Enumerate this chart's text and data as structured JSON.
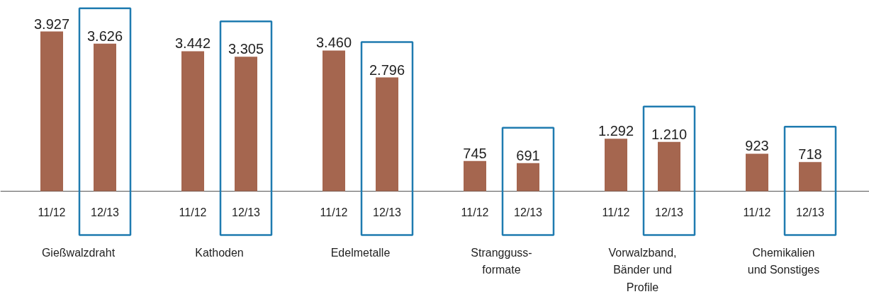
{
  "chart_data": {
    "type": "bar",
    "categories": [
      "Gießwalzdraht",
      "Kathoden",
      "Edelmetalle",
      "Strangguss-\nformate",
      "Vorwalzband,\nBänder und\nProfile",
      "Chemikalien\nund Sonstiges"
    ],
    "series": [
      {
        "name": "11/12",
        "color": "#a5664f",
        "values": [
          3927,
          3442,
          3460,
          745,
          1292,
          923
        ],
        "value_labels": [
          "3.927",
          "3.442",
          "3.460",
          "745",
          "1.292",
          "923"
        ]
      },
      {
        "name": "12/13",
        "color": "#a5664f",
        "values": [
          3626,
          3305,
          2796,
          691,
          1210,
          718
        ],
        "value_labels": [
          "3.626",
          "3.305",
          "2.796",
          "691",
          "1.210",
          "718"
        ]
      }
    ]
  }
}
